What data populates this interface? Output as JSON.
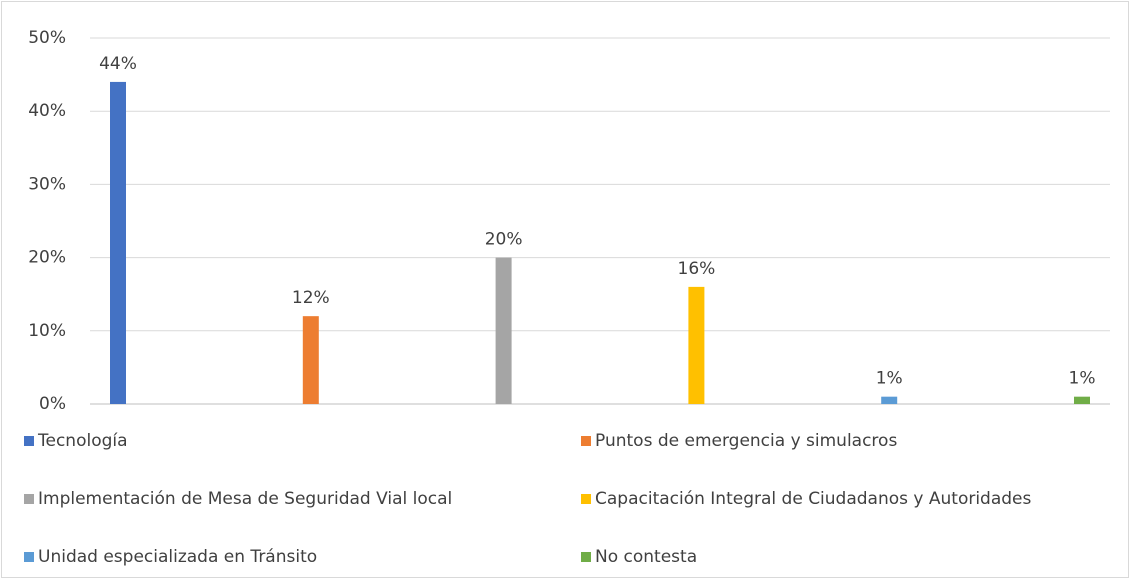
{
  "chart_data": {
    "type": "bar",
    "categories": [
      null
    ],
    "series": [
      {
        "name": "Tecnología",
        "color": "#4472c4",
        "values": [
          44
        ],
        "value_labels": [
          "44%"
        ]
      },
      {
        "name": "Puntos de emergencia y simulacros",
        "color": "#ed7d31",
        "values": [
          12
        ],
        "value_labels": [
          "12%"
        ]
      },
      {
        "name": "Implementación de Mesa de Seguridad Vial local",
        "color": "#a5a5a5",
        "values": [
          20
        ],
        "value_labels": [
          "20%"
        ]
      },
      {
        "name": "Capacitación Integral de Ciudadanos y Autoridades",
        "color": "#ffc000",
        "values": [
          16
        ],
        "value_labels": [
          "16%"
        ]
      },
      {
        "name": "Unidad especializada en Tránsito",
        "color": "#5b9bd5",
        "values": [
          1
        ],
        "value_labels": [
          "1%"
        ]
      },
      {
        "name": "No contesta",
        "color": "#70ad47",
        "values": [
          1
        ],
        "value_labels": [
          "1%"
        ]
      }
    ],
    "ylim": [
      0,
      50
    ],
    "yticks": [
      {
        "value": 0,
        "label": "0%"
      },
      {
        "value": 10,
        "label": "10%"
      },
      {
        "value": 20,
        "label": "20%"
      },
      {
        "value": 30,
        "label": "30%"
      },
      {
        "value": 40,
        "label": "40%"
      },
      {
        "value": 50,
        "label": "50%"
      }
    ],
    "grid": true,
    "legend": "bottom"
  }
}
